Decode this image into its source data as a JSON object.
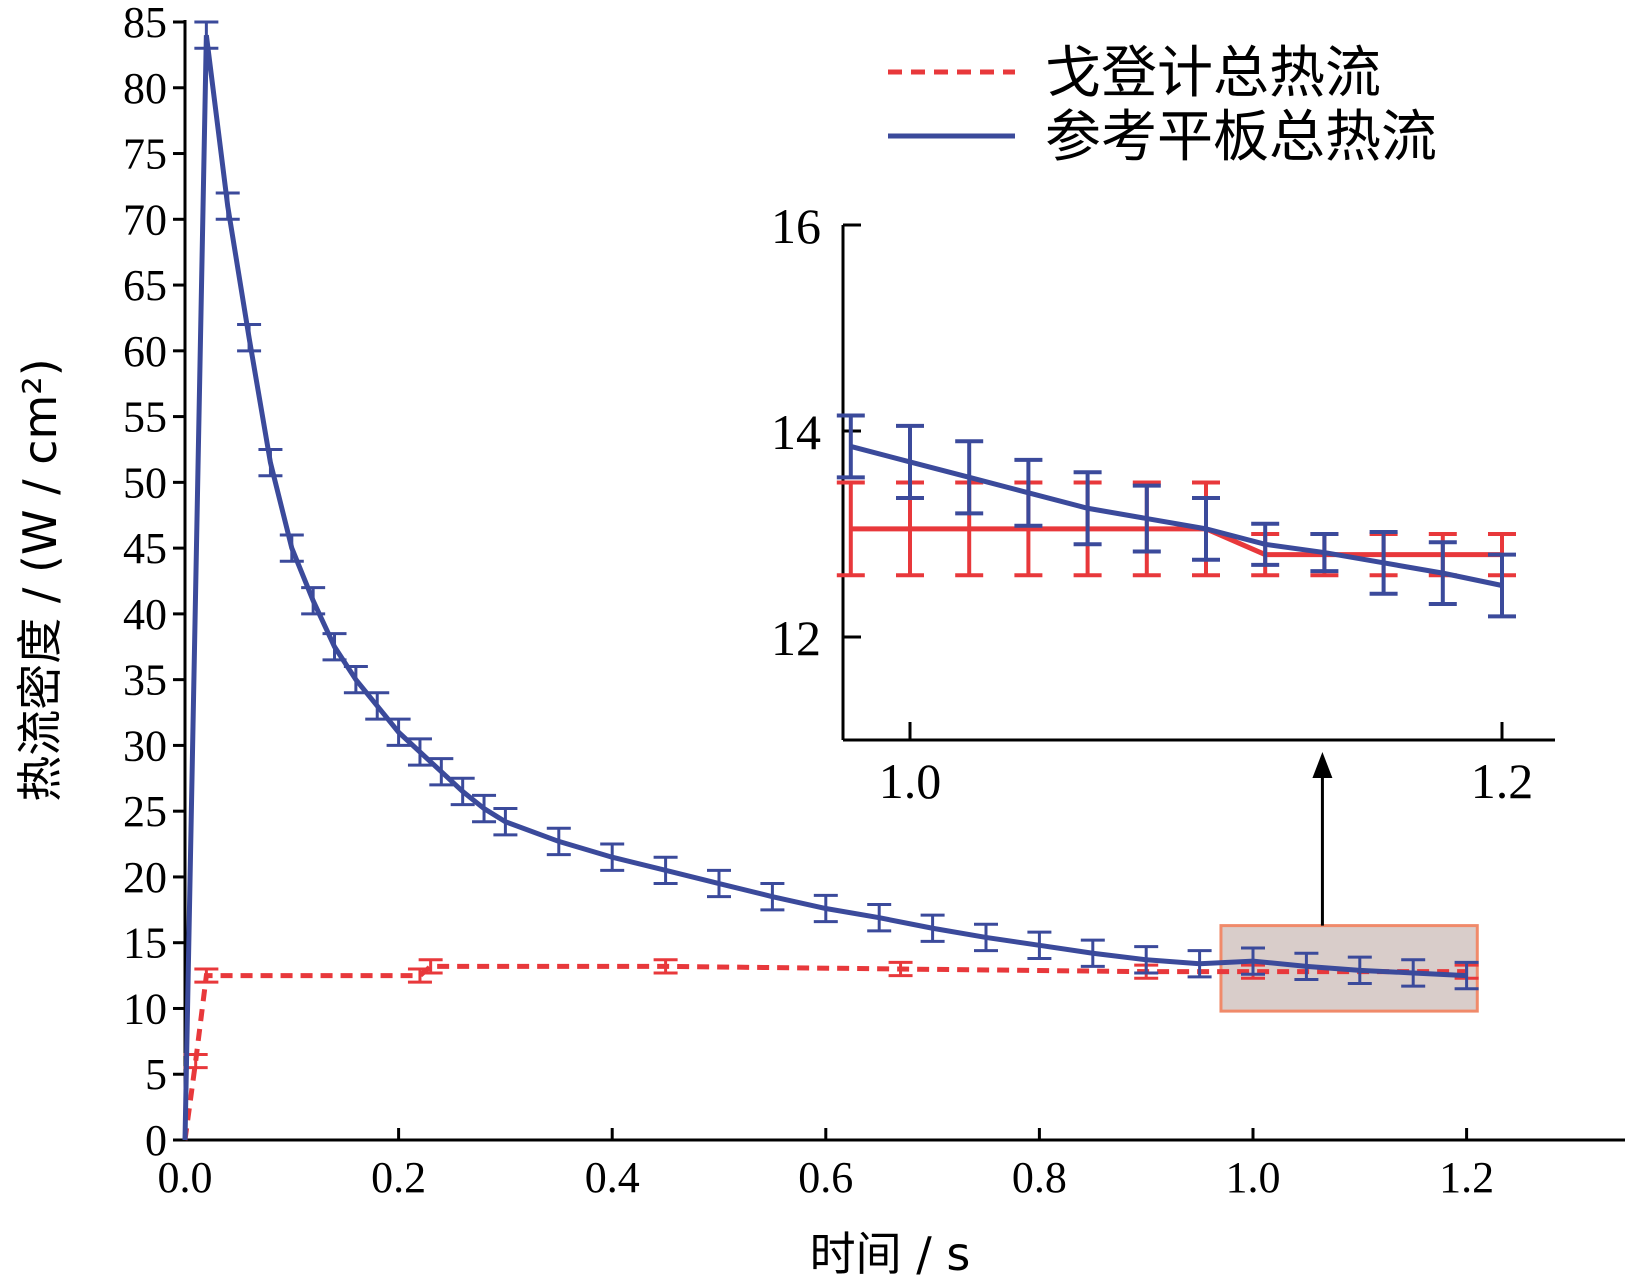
{
  "chart_data": [
    {
      "name": "main",
      "type": "line",
      "title": "",
      "xlabel": "时间 / s",
      "ylabel": "热流密度 / (W / cm²)",
      "xlim": [
        0,
        1.3
      ],
      "ylim": [
        0,
        85
      ],
      "xticks": [
        0.0,
        0.2,
        0.4,
        0.6,
        0.8,
        1.0,
        1.2
      ],
      "xtick_labels": [
        "0.0",
        "0.2",
        "0.4",
        "0.6",
        "0.8",
        "1.0",
        "1.2"
      ],
      "yticks": [
        0,
        5,
        10,
        15,
        20,
        25,
        30,
        35,
        40,
        45,
        50,
        55,
        60,
        65,
        70,
        75,
        80,
        85
      ],
      "ytick_labels": [
        "0",
        "5",
        "10",
        "15",
        "20",
        "25",
        "30",
        "35",
        "40",
        "45",
        "50",
        "55",
        "60",
        "65",
        "70",
        "75",
        "80",
        "85"
      ],
      "legend_position": "top-right",
      "series": [
        {
          "name": "戈登计总热流",
          "style": "dashed",
          "color": "#e8383b",
          "x": [
            0.0,
            0.01,
            0.02,
            0.22,
            0.23,
            0.45,
            0.67,
            0.9,
            1.0,
            1.2
          ],
          "y": [
            0.0,
            6.0,
            12.5,
            12.5,
            13.2,
            13.2,
            13.0,
            12.8,
            12.8,
            12.8
          ],
          "errorbar_halfwidth": 0.5
        },
        {
          "name": "参考平板总热流",
          "style": "solid",
          "color": "#3b4a9b",
          "x": [
            0.0,
            0.02,
            0.04,
            0.06,
            0.08,
            0.1,
            0.12,
            0.14,
            0.16,
            0.18,
            0.2,
            0.22,
            0.24,
            0.26,
            0.28,
            0.3,
            0.35,
            0.4,
            0.45,
            0.5,
            0.55,
            0.6,
            0.65,
            0.7,
            0.75,
            0.8,
            0.85,
            0.9,
            0.95,
            1.0,
            1.05,
            1.1,
            1.15,
            1.2
          ],
          "y": [
            0.0,
            84.0,
            71.0,
            61.0,
            51.5,
            45.0,
            41.0,
            37.5,
            35.0,
            33.0,
            31.0,
            29.5,
            28.0,
            26.5,
            25.2,
            24.2,
            22.7,
            21.5,
            20.5,
            19.5,
            18.5,
            17.6,
            16.9,
            16.1,
            15.4,
            14.8,
            14.2,
            13.7,
            13.4,
            13.6,
            13.2,
            12.9,
            12.7,
            12.5
          ],
          "errorbar_halfwidth": 1.0
        }
      ],
      "annotations": [
        "highlight region x 0.97–1.2, y 10–16 magnified in inset"
      ]
    },
    {
      "name": "inset",
      "type": "line",
      "xlim": [
        0.975,
        1.215
      ],
      "ylim": [
        11.2,
        16
      ],
      "xticks": [
        1.0,
        1.2
      ],
      "xtick_labels": [
        "1.0",
        "1.2"
      ],
      "yticks": [
        12,
        14,
        16
      ],
      "ytick_labels": [
        "12",
        "14",
        "16"
      ],
      "series": [
        {
          "name": "戈登计总热流",
          "style": "solid",
          "color": "#e8383b",
          "x": [
            0.98,
            1.0,
            1.02,
            1.04,
            1.06,
            1.08,
            1.1,
            1.12,
            1.14,
            1.16,
            1.18,
            1.2
          ],
          "y": [
            13.05,
            13.05,
            13.05,
            13.05,
            13.05,
            13.05,
            13.05,
            12.8,
            12.8,
            12.8,
            12.8,
            12.8
          ],
          "err": [
            0.45,
            0.45,
            0.45,
            0.45,
            0.45,
            0.45,
            0.45,
            0.2,
            0.2,
            0.2,
            0.2,
            0.2
          ]
        },
        {
          "name": "参考平板总热流",
          "style": "solid",
          "color": "#3b4a9b",
          "x": [
            0.98,
            1.0,
            1.02,
            1.04,
            1.06,
            1.08,
            1.1,
            1.12,
            1.14,
            1.16,
            1.18,
            1.2
          ],
          "y": [
            13.85,
            13.7,
            13.55,
            13.4,
            13.25,
            13.15,
            13.05,
            12.9,
            12.82,
            12.72,
            12.62,
            12.5
          ],
          "err": [
            0.3,
            0.35,
            0.35,
            0.32,
            0.35,
            0.32,
            0.3,
            0.2,
            0.18,
            0.3,
            0.3,
            0.3
          ]
        }
      ]
    }
  ]
}
